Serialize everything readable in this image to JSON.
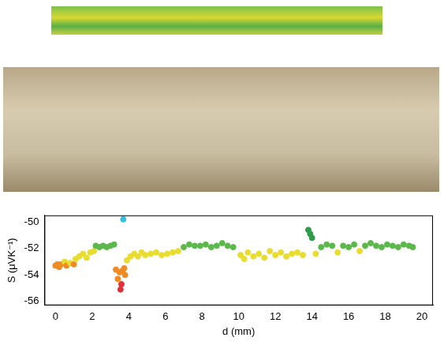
{
  "chart_data": {
    "type": "scatter",
    "x_label": "d (mm)",
    "y_label": "S (μVK⁻¹)",
    "x": [
      0.0,
      0.1,
      0.2,
      0.3,
      0.5,
      0.6,
      0.8,
      1.0,
      1.1,
      1.3,
      1.5,
      1.7,
      1.9,
      2.1,
      2.2,
      2.4,
      2.6,
      2.8,
      3.0,
      3.2,
      3.3,
      3.4,
      3.5,
      3.55,
      3.6,
      3.65,
      3.7,
      3.75,
      3.8,
      3.9,
      4.1,
      4.3,
      4.5,
      4.7,
      4.9,
      5.2,
      5.5,
      5.8,
      6.1,
      6.4,
      6.7,
      7.0,
      7.3,
      7.6,
      7.9,
      8.2,
      8.5,
      8.8,
      9.1,
      9.4,
      9.7,
      10.1,
      10.3,
      10.5,
      10.8,
      11.1,
      11.4,
      11.7,
      12.0,
      12.3,
      12.6,
      12.9,
      13.2,
      13.5,
      13.8,
      13.9,
      14.0,
      14.2,
      14.5,
      14.8,
      15.1,
      15.4,
      15.7,
      16.0,
      16.3,
      16.6,
      16.9,
      17.2,
      17.5,
      17.8,
      18.1,
      18.4,
      18.7,
      19.0,
      19.3,
      19.5
    ],
    "values": [
      -53.3,
      -53.2,
      -53.4,
      -53.2,
      -53.0,
      -53.3,
      -53.1,
      -53.2,
      -52.8,
      -52.6,
      -52.4,
      -52.7,
      -52.3,
      -52.2,
      -51.8,
      -51.9,
      -51.8,
      -51.9,
      -51.8,
      -51.7,
      -53.6,
      -54.3,
      -53.8,
      -55.1,
      -54.7,
      -53.7,
      -49.8,
      -53.5,
      -54.0,
      -52.9,
      -52.6,
      -52.4,
      -52.6,
      -52.3,
      -52.5,
      -52.4,
      -52.3,
      -52.5,
      -52.4,
      -52.3,
      -52.2,
      -51.9,
      -51.7,
      -51.8,
      -51.8,
      -51.7,
      -51.9,
      -51.8,
      -51.6,
      -51.8,
      -51.9,
      -52.5,
      -52.8,
      -52.3,
      -52.6,
      -52.4,
      -52.7,
      -52.2,
      -52.5,
      -52.3,
      -52.6,
      -52.4,
      -52.3,
      -52.5,
      -50.6,
      -50.9,
      -51.2,
      -52.4,
      -51.9,
      -51.7,
      -51.8,
      -52.3,
      -51.8,
      -51.9,
      -51.7,
      -52.2,
      -51.8,
      -51.6,
      -51.8,
      -51.9,
      -51.7,
      -51.8,
      -51.9,
      -51.7,
      -51.8,
      -51.9
    ],
    "colors": [
      "#f08a24",
      "#f08a24",
      "#f08a24",
      "#f08a24",
      "#e8dc30",
      "#f08a24",
      "#e8dc30",
      "#f08a24",
      "#e8dc30",
      "#e8dc30",
      "#e8dc30",
      "#e8dc30",
      "#e8dc30",
      "#e8dc30",
      "#5cb84c",
      "#5cb84c",
      "#5cb84c",
      "#5cb84c",
      "#5cb84c",
      "#5cb84c",
      "#f08a24",
      "#f08a24",
      "#f08a24",
      "#e0303a",
      "#e0303a",
      "#f08a24",
      "#30c0e0",
      "#f08a24",
      "#f08a24",
      "#e8dc30",
      "#e8dc30",
      "#e8dc30",
      "#e8dc30",
      "#e8dc30",
      "#e8dc30",
      "#e8dc30",
      "#e8dc30",
      "#e8dc30",
      "#e8dc30",
      "#e8dc30",
      "#e8dc30",
      "#5cb84c",
      "#5cb84c",
      "#5cb84c",
      "#5cb84c",
      "#5cb84c",
      "#5cb84c",
      "#5cb84c",
      "#5cb84c",
      "#5cb84c",
      "#5cb84c",
      "#e8dc30",
      "#e8dc30",
      "#e8dc30",
      "#e8dc30",
      "#e8dc30",
      "#e8dc30",
      "#e8dc30",
      "#e8dc30",
      "#e8dc30",
      "#e8dc30",
      "#e8dc30",
      "#e8dc30",
      "#e8dc30",
      "#2e9a4a",
      "#2e9a4a",
      "#2e9a4a",
      "#e8dc30",
      "#5cb84c",
      "#5cb84c",
      "#5cb84c",
      "#e8dc30",
      "#5cb84c",
      "#5cb84c",
      "#5cb84c",
      "#e8dc30",
      "#5cb84c",
      "#5cb84c",
      "#5cb84c",
      "#5cb84c",
      "#5cb84c",
      "#5cb84c",
      "#5cb84c",
      "#5cb84c",
      "#5cb84c",
      "#5cb84c"
    ],
    "xlim": [
      -0.6,
      20.6
    ],
    "xticks": [
      0,
      2,
      4,
      6,
      8,
      10,
      12,
      14,
      16,
      18,
      20
    ],
    "ylim": [
      -56.3,
      -49.5
    ],
    "yticks": [
      -56,
      -54,
      -52,
      -50
    ],
    "grid": false
  }
}
